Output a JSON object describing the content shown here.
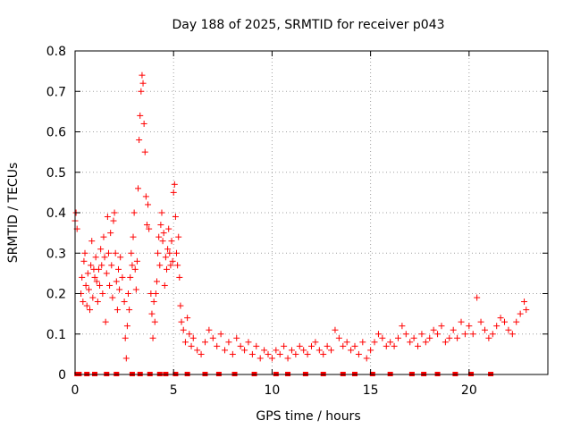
{
  "chart_data": {
    "type": "scatter",
    "title": "Day 188 of 2025, SRMTID for receiver p043",
    "xlabel": "GPS time / hours",
    "ylabel": "SRMTID / TECUs",
    "xlim": [
      0,
      24
    ],
    "ylim": [
      0,
      0.8
    ],
    "xticks": [
      0,
      5,
      10,
      15,
      20
    ],
    "xtick_labels": [
      "0",
      "5",
      "10",
      "15",
      "20"
    ],
    "yticks": [
      0,
      0.1,
      0.2,
      0.3,
      0.4,
      0.5,
      0.6,
      0.7,
      0.8
    ],
    "ytick_labels": [
      "0",
      "0.1",
      "0.2",
      "0.3",
      "0.4",
      "0.5",
      "0.6",
      "0.7",
      "0.8"
    ],
    "grid": true,
    "marker": "+",
    "color": "#ff0000",
    "series": [
      {
        "name": "SRMTID",
        "points": [
          [
            0.0,
            0.38
          ],
          [
            0.05,
            0.4
          ],
          [
            0.1,
            0.36
          ],
          [
            0.3,
            0.2
          ],
          [
            0.35,
            0.24
          ],
          [
            0.4,
            0.18
          ],
          [
            0.45,
            0.28
          ],
          [
            0.5,
            0.3
          ],
          [
            0.55,
            0.22
          ],
          [
            0.6,
            0.17
          ],
          [
            0.65,
            0.25
          ],
          [
            0.7,
            0.21
          ],
          [
            0.75,
            0.16
          ],
          [
            0.8,
            0.27
          ],
          [
            0.85,
            0.33
          ],
          [
            0.9,
            0.19
          ],
          [
            0.95,
            0.26
          ],
          [
            1.0,
            0.24
          ],
          [
            1.05,
            0.29
          ],
          [
            1.1,
            0.23
          ],
          [
            1.15,
            0.18
          ],
          [
            1.2,
            0.26
          ],
          [
            1.25,
            0.22
          ],
          [
            1.3,
            0.31
          ],
          [
            1.35,
            0.27
          ],
          [
            1.4,
            0.2
          ],
          [
            1.45,
            0.34
          ],
          [
            1.5,
            0.29
          ],
          [
            1.55,
            0.13
          ],
          [
            1.6,
            0.25
          ],
          [
            1.65,
            0.39
          ],
          [
            1.7,
            0.3
          ],
          [
            1.75,
            0.22
          ],
          [
            1.8,
            0.35
          ],
          [
            1.85,
            0.27
          ],
          [
            1.9,
            0.19
          ],
          [
            1.95,
            0.38
          ],
          [
            2.0,
            0.4
          ],
          [
            2.05,
            0.3
          ],
          [
            2.1,
            0.23
          ],
          [
            2.15,
            0.16
          ],
          [
            2.2,
            0.26
          ],
          [
            2.25,
            0.21
          ],
          [
            2.3,
            0.29
          ],
          [
            2.4,
            0.24
          ],
          [
            2.5,
            0.18
          ],
          [
            2.55,
            0.09
          ],
          [
            2.6,
            0.04
          ],
          [
            2.65,
            0.12
          ],
          [
            2.7,
            0.2
          ],
          [
            2.75,
            0.16
          ],
          [
            2.8,
            0.24
          ],
          [
            2.85,
            0.3
          ],
          [
            2.9,
            0.27
          ],
          [
            2.95,
            0.34
          ],
          [
            3.0,
            0.4
          ],
          [
            3.05,
            0.26
          ],
          [
            3.1,
            0.21
          ],
          [
            3.15,
            0.28
          ],
          [
            3.2,
            0.46
          ],
          [
            3.25,
            0.58
          ],
          [
            3.3,
            0.64
          ],
          [
            3.35,
            0.7
          ],
          [
            3.4,
            0.74
          ],
          [
            3.45,
            0.72
          ],
          [
            3.5,
            0.62
          ],
          [
            3.55,
            0.55
          ],
          [
            3.6,
            0.44
          ],
          [
            3.65,
            0.37
          ],
          [
            3.7,
            0.42
          ],
          [
            3.75,
            0.36
          ],
          [
            3.85,
            0.2
          ],
          [
            3.9,
            0.15
          ],
          [
            3.95,
            0.09
          ],
          [
            4.0,
            0.18
          ],
          [
            4.05,
            0.13
          ],
          [
            4.1,
            0.2
          ],
          [
            4.15,
            0.23
          ],
          [
            4.2,
            0.3
          ],
          [
            4.25,
            0.34
          ],
          [
            4.3,
            0.27
          ],
          [
            4.35,
            0.37
          ],
          [
            4.4,
            0.4
          ],
          [
            4.45,
            0.33
          ],
          [
            4.5,
            0.35
          ],
          [
            4.55,
            0.22
          ],
          [
            4.6,
            0.29
          ],
          [
            4.65,
            0.26
          ],
          [
            4.7,
            0.31
          ],
          [
            4.75,
            0.36
          ],
          [
            4.8,
            0.3
          ],
          [
            4.85,
            0.27
          ],
          [
            4.9,
            0.33
          ],
          [
            4.95,
            0.28
          ],
          [
            5.0,
            0.45
          ],
          [
            5.05,
            0.47
          ],
          [
            5.1,
            0.39
          ],
          [
            5.15,
            0.3
          ],
          [
            5.2,
            0.27
          ],
          [
            5.25,
            0.34
          ],
          [
            5.3,
            0.24
          ],
          [
            5.35,
            0.17
          ],
          [
            5.4,
            0.13
          ],
          [
            5.5,
            0.11
          ],
          [
            5.6,
            0.08
          ],
          [
            5.7,
            0.14
          ],
          [
            5.8,
            0.1
          ],
          [
            5.9,
            0.07
          ],
          [
            6.0,
            0.09
          ],
          [
            6.2,
            0.06
          ],
          [
            6.4,
            0.05
          ],
          [
            6.6,
            0.08
          ],
          [
            6.8,
            0.11
          ],
          [
            7.0,
            0.09
          ],
          [
            7.2,
            0.07
          ],
          [
            7.4,
            0.1
          ],
          [
            7.6,
            0.06
          ],
          [
            7.8,
            0.08
          ],
          [
            8.0,
            0.05
          ],
          [
            8.2,
            0.09
          ],
          [
            8.4,
            0.07
          ],
          [
            8.6,
            0.06
          ],
          [
            8.8,
            0.08
          ],
          [
            9.0,
            0.05
          ],
          [
            9.2,
            0.07
          ],
          [
            9.4,
            0.04
          ],
          [
            9.6,
            0.06
          ],
          [
            9.8,
            0.05
          ],
          [
            10.0,
            0.04
          ],
          [
            10.2,
            0.06
          ],
          [
            10.4,
            0.05
          ],
          [
            10.6,
            0.07
          ],
          [
            10.8,
            0.04
          ],
          [
            11.0,
            0.06
          ],
          [
            11.2,
            0.05
          ],
          [
            11.4,
            0.07
          ],
          [
            11.6,
            0.06
          ],
          [
            11.8,
            0.05
          ],
          [
            12.0,
            0.07
          ],
          [
            12.2,
            0.08
          ],
          [
            12.4,
            0.06
          ],
          [
            12.6,
            0.05
          ],
          [
            12.8,
            0.07
          ],
          [
            13.0,
            0.06
          ],
          [
            13.2,
            0.11
          ],
          [
            13.4,
            0.09
          ],
          [
            13.6,
            0.07
          ],
          [
            13.8,
            0.08
          ],
          [
            14.0,
            0.06
          ],
          [
            14.2,
            0.07
          ],
          [
            14.4,
            0.05
          ],
          [
            14.6,
            0.08
          ],
          [
            14.8,
            0.04
          ],
          [
            15.0,
            0.06
          ],
          [
            15.2,
            0.08
          ],
          [
            15.4,
            0.1
          ],
          [
            15.6,
            0.09
          ],
          [
            15.8,
            0.07
          ],
          [
            16.0,
            0.08
          ],
          [
            16.2,
            0.07
          ],
          [
            16.4,
            0.09
          ],
          [
            16.6,
            0.12
          ],
          [
            16.8,
            0.1
          ],
          [
            17.0,
            0.08
          ],
          [
            17.2,
            0.09
          ],
          [
            17.4,
            0.07
          ],
          [
            17.6,
            0.1
          ],
          [
            17.8,
            0.08
          ],
          [
            18.0,
            0.09
          ],
          [
            18.2,
            0.11
          ],
          [
            18.4,
            0.1
          ],
          [
            18.6,
            0.12
          ],
          [
            18.8,
            0.08
          ],
          [
            19.0,
            0.09
          ],
          [
            19.2,
            0.11
          ],
          [
            19.4,
            0.09
          ],
          [
            19.6,
            0.13
          ],
          [
            19.8,
            0.1
          ],
          [
            20.0,
            0.12
          ],
          [
            20.2,
            0.1
          ],
          [
            20.4,
            0.19
          ],
          [
            20.6,
            0.13
          ],
          [
            20.8,
            0.11
          ],
          [
            21.0,
            0.09
          ],
          [
            21.2,
            0.1
          ],
          [
            21.4,
            0.12
          ],
          [
            21.6,
            0.14
          ],
          [
            21.8,
            0.13
          ],
          [
            22.0,
            0.11
          ],
          [
            22.2,
            0.1
          ],
          [
            22.4,
            0.13
          ],
          [
            22.6,
            0.15
          ],
          [
            22.8,
            0.18
          ],
          [
            22.9,
            0.16
          ]
        ]
      }
    ],
    "zero_points_x": [
      0.1,
      0.2,
      0.6,
      1.0,
      1.6,
      2.1,
      2.9,
      3.3,
      3.8,
      4.3,
      4.6,
      5.1,
      5.7,
      6.6,
      7.3,
      8.1,
      9.1,
      10.2,
      10.8,
      11.7,
      12.6,
      13.6,
      14.2,
      15.1,
      16.0,
      17.1,
      17.7,
      18.4,
      19.3,
      20.1,
      21.1
    ]
  }
}
